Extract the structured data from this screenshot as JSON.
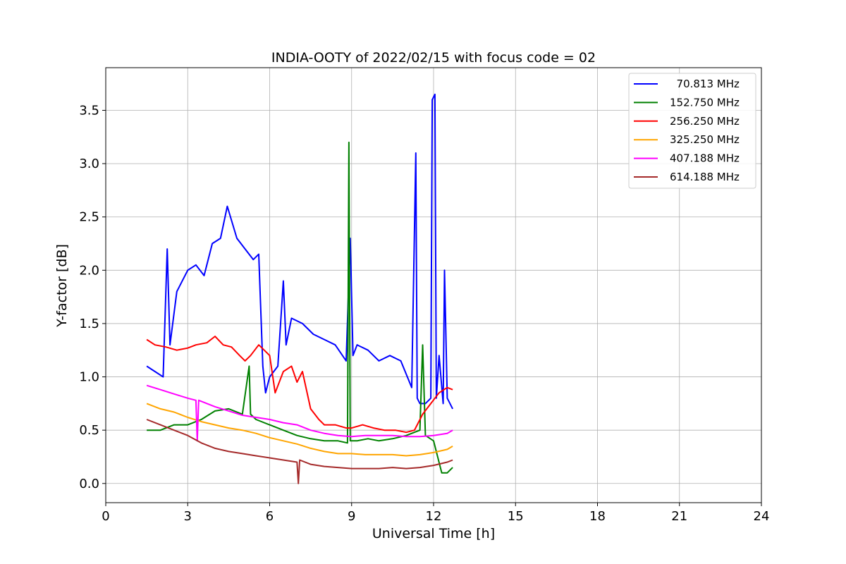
{
  "chart_data": {
    "type": "line",
    "title": "INDIA-OOTY of 2022/02/15 with focus code = 02",
    "xlabel": "Universal Time [h]",
    "ylabel": "Y-factor [dB]",
    "xlim": [
      0,
      24
    ],
    "ylim": [
      -0.18,
      3.9
    ],
    "xticks": [
      0,
      3,
      6,
      9,
      12,
      15,
      18,
      21,
      24
    ],
    "xtick_labels": [
      "0",
      "3",
      "6",
      "9",
      "12",
      "15",
      "18",
      "21",
      "24"
    ],
    "yticks": [
      0.0,
      0.5,
      1.0,
      1.5,
      2.0,
      2.5,
      3.0,
      3.5
    ],
    "ytick_labels": [
      "0.0",
      "0.5",
      "1.0",
      "1.5",
      "2.0",
      "2.5",
      "3.0",
      "3.5"
    ],
    "grid": true,
    "legend_position": "top-right",
    "series": [
      {
        "name": "  70.813 MHz",
        "color": "#0000ff",
        "x": [
          1.5,
          1.8,
          2.1,
          2.25,
          2.35,
          2.6,
          3.0,
          3.3,
          3.6,
          3.9,
          4.2,
          4.45,
          4.8,
          5.1,
          5.4,
          5.6,
          5.75,
          5.85,
          6.0,
          6.3,
          6.5,
          6.6,
          6.8,
          7.2,
          7.6,
          8.0,
          8.4,
          8.8,
          8.95,
          9.05,
          9.2,
          9.6,
          10.0,
          10.4,
          10.8,
          11.2,
          11.35,
          11.4,
          11.5,
          11.7,
          11.9,
          11.95,
          12.05,
          12.1,
          12.2,
          12.35,
          12.4,
          12.5,
          12.7
        ],
        "y": [
          1.1,
          1.05,
          1.0,
          2.2,
          1.3,
          1.8,
          2.0,
          2.05,
          1.95,
          2.25,
          2.3,
          2.6,
          2.3,
          2.2,
          2.1,
          2.15,
          1.1,
          0.85,
          1.0,
          1.1,
          1.9,
          1.3,
          1.55,
          1.5,
          1.4,
          1.35,
          1.3,
          1.15,
          2.3,
          1.2,
          1.3,
          1.25,
          1.15,
          1.2,
          1.15,
          0.9,
          3.1,
          0.8,
          0.75,
          0.75,
          0.8,
          3.6,
          3.65,
          0.8,
          1.2,
          0.75,
          2.0,
          0.8,
          0.7
        ]
      },
      {
        "name": "152.750 MHz",
        "color": "#008000",
        "x": [
          1.5,
          2.0,
          2.5,
          3.0,
          3.5,
          4.0,
          4.5,
          5.0,
          5.25,
          5.3,
          5.5,
          6.0,
          6.5,
          7.0,
          7.5,
          8.0,
          8.5,
          8.85,
          8.9,
          8.95,
          9.2,
          9.6,
          10.0,
          10.5,
          11.0,
          11.5,
          11.6,
          11.7,
          12.0,
          12.3,
          12.5,
          12.7
        ],
        "y": [
          0.5,
          0.5,
          0.55,
          0.55,
          0.6,
          0.68,
          0.7,
          0.65,
          1.1,
          0.65,
          0.6,
          0.55,
          0.5,
          0.45,
          0.42,
          0.4,
          0.4,
          0.38,
          3.2,
          0.4,
          0.4,
          0.42,
          0.4,
          0.42,
          0.45,
          0.5,
          1.3,
          0.45,
          0.4,
          0.1,
          0.1,
          0.15
        ]
      },
      {
        "name": "256.250 MHz",
        "color": "#ff0000",
        "x": [
          1.5,
          1.8,
          2.2,
          2.6,
          3.0,
          3.3,
          3.7,
          4.0,
          4.3,
          4.6,
          4.9,
          5.1,
          5.3,
          5.6,
          5.8,
          6.0,
          6.2,
          6.5,
          6.8,
          7.0,
          7.2,
          7.5,
          7.8,
          8.0,
          8.4,
          8.8,
          9.0,
          9.4,
          9.8,
          10.2,
          10.6,
          11.0,
          11.3,
          11.6,
          11.9,
          12.2,
          12.5,
          12.7
        ],
        "y": [
          1.35,
          1.3,
          1.28,
          1.25,
          1.27,
          1.3,
          1.32,
          1.38,
          1.3,
          1.28,
          1.2,
          1.15,
          1.2,
          1.3,
          1.25,
          1.2,
          0.85,
          1.05,
          1.1,
          0.95,
          1.05,
          0.7,
          0.6,
          0.55,
          0.55,
          0.52,
          0.52,
          0.55,
          0.52,
          0.5,
          0.5,
          0.48,
          0.5,
          0.65,
          0.75,
          0.85,
          0.9,
          0.88
        ]
      },
      {
        "name": "325.250 MHz",
        "color": "#ffa500",
        "x": [
          1.5,
          2.0,
          2.5,
          3.0,
          3.5,
          4.0,
          4.5,
          5.0,
          5.5,
          6.0,
          6.5,
          7.0,
          7.5,
          8.0,
          8.5,
          9.0,
          9.5,
          10.0,
          10.5,
          11.0,
          11.5,
          12.0,
          12.5,
          12.7
        ],
        "y": [
          0.75,
          0.7,
          0.67,
          0.62,
          0.58,
          0.55,
          0.52,
          0.5,
          0.47,
          0.43,
          0.4,
          0.37,
          0.33,
          0.3,
          0.28,
          0.28,
          0.27,
          0.27,
          0.27,
          0.26,
          0.27,
          0.29,
          0.32,
          0.35
        ]
      },
      {
        "name": "407.188 MHz",
        "color": "#ff00ff",
        "x": [
          1.5,
          2.0,
          2.5,
          3.0,
          3.3,
          3.35,
          3.4,
          4.0,
          4.5,
          5.0,
          5.5,
          6.0,
          6.5,
          7.0,
          7.5,
          8.0,
          8.5,
          9.0,
          9.5,
          10.0,
          10.5,
          11.0,
          11.5,
          12.0,
          12.5,
          12.7
        ],
        "y": [
          0.92,
          0.88,
          0.84,
          0.8,
          0.78,
          0.4,
          0.78,
          0.72,
          0.68,
          0.64,
          0.62,
          0.6,
          0.57,
          0.55,
          0.5,
          0.47,
          0.45,
          0.44,
          0.45,
          0.45,
          0.45,
          0.44,
          0.44,
          0.45,
          0.47,
          0.5
        ]
      },
      {
        "name": "614.188 MHz",
        "color": "#a52a2a",
        "x": [
          1.5,
          2.0,
          2.5,
          3.0,
          3.5,
          4.0,
          4.5,
          5.0,
          5.5,
          6.0,
          6.5,
          7.0,
          7.05,
          7.1,
          7.5,
          8.0,
          8.5,
          9.0,
          9.5,
          10.0,
          10.5,
          11.0,
          11.5,
          12.0,
          12.5,
          12.7
        ],
        "y": [
          0.6,
          0.55,
          0.5,
          0.45,
          0.38,
          0.33,
          0.3,
          0.28,
          0.26,
          0.24,
          0.22,
          0.2,
          0.0,
          0.22,
          0.18,
          0.16,
          0.15,
          0.14,
          0.14,
          0.14,
          0.15,
          0.14,
          0.15,
          0.17,
          0.2,
          0.22
        ]
      }
    ]
  }
}
